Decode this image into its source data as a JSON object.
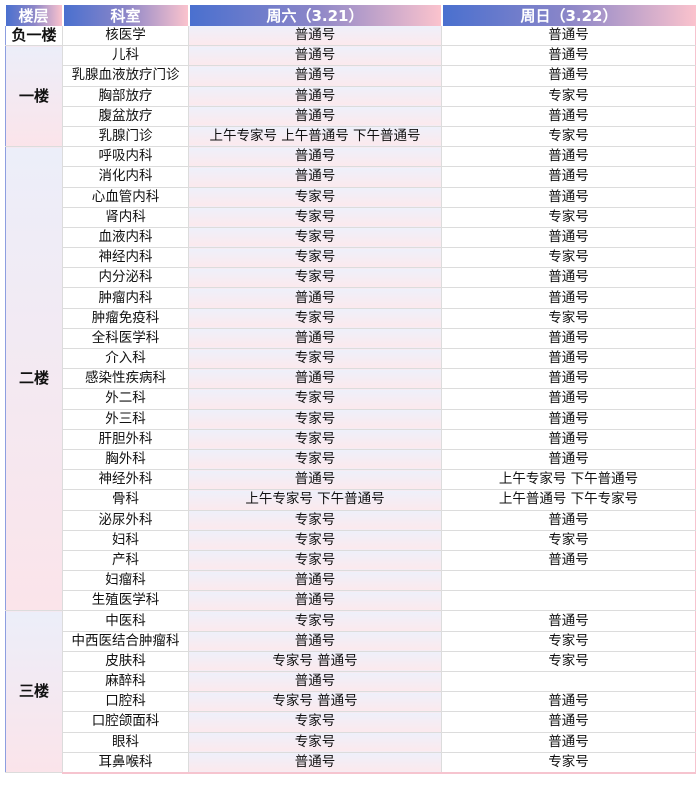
{
  "header": {
    "floor": "楼层",
    "dept": "科室",
    "sat": "周六（3.21）",
    "sun": "周日（3.22）"
  },
  "colors": {
    "header_start": "#4a70cf",
    "header_end": "#fbc3cd",
    "pink": "#fbe4ea",
    "lavender": "#eceef9"
  },
  "groups": [
    {
      "floor": "负一楼",
      "rows": [
        [
          "核医学",
          "普通号",
          "普通号"
        ]
      ]
    },
    {
      "floor": "一楼",
      "rows": [
        [
          "儿科",
          "普通号",
          "普通号"
        ],
        [
          "乳腺血液放疗门诊",
          "普通号",
          "普通号"
        ],
        [
          "胸部放疗",
          "普通号",
          "专家号"
        ],
        [
          "腹盆放疗",
          "普通号",
          "普通号"
        ],
        [
          "乳腺门诊",
          "上午专家号 上午普通号 下午普通号",
          "专家号"
        ]
      ]
    },
    {
      "floor": "二楼",
      "rows": [
        [
          "呼吸内科",
          "普通号",
          "普通号"
        ],
        [
          "消化内科",
          "普通号",
          "普通号"
        ],
        [
          "心血管内科",
          "专家号",
          "普通号"
        ],
        [
          "肾内科",
          "专家号",
          "专家号"
        ],
        [
          "血液内科",
          "专家号",
          "普通号"
        ],
        [
          "神经内科",
          "专家号",
          "专家号"
        ],
        [
          "内分泌科",
          "专家号",
          "普通号"
        ],
        [
          "肿瘤内科",
          "普通号",
          "普通号"
        ],
        [
          "肿瘤免疫科",
          "专家号",
          "专家号"
        ],
        [
          "全科医学科",
          "普通号",
          "普通号"
        ],
        [
          "介入科",
          "专家号",
          "普通号"
        ],
        [
          "感染性疾病科",
          "普通号",
          "普通号"
        ],
        [
          "外二科",
          "专家号",
          "普通号"
        ],
        [
          "外三科",
          "专家号",
          "普通号"
        ],
        [
          "肝胆外科",
          "专家号",
          "普通号"
        ],
        [
          "胸外科",
          "专家号",
          "普通号"
        ],
        [
          "神经外科",
          "普通号",
          "上午专家号 下午普通号"
        ],
        [
          "骨科",
          "上午专家号 下午普通号",
          "上午普通号 下午专家号"
        ],
        [
          "泌尿外科",
          "专家号",
          "普通号"
        ],
        [
          "妇科",
          "专家号",
          "专家号"
        ],
        [
          "产科",
          "专家号",
          "普通号"
        ],
        [
          "妇瘤科",
          "普通号",
          ""
        ],
        [
          "生殖医学科",
          "普通号",
          ""
        ]
      ]
    },
    {
      "floor": "三楼",
      "rows": [
        [
          "中医科",
          "专家号",
          "普通号"
        ],
        [
          "中西医结合肿瘤科",
          "普通号",
          "专家号"
        ],
        [
          "皮肤科",
          "专家号 普通号",
          "专家号"
        ],
        [
          "麻醉科",
          "普通号",
          ""
        ],
        [
          "口腔科",
          "专家号 普通号",
          "普通号"
        ],
        [
          "口腔颌面科",
          "专家号",
          "普通号"
        ],
        [
          "眼科",
          "专家号",
          "普通号"
        ],
        [
          "耳鼻喉科",
          "普通号",
          "专家号"
        ]
      ]
    }
  ]
}
